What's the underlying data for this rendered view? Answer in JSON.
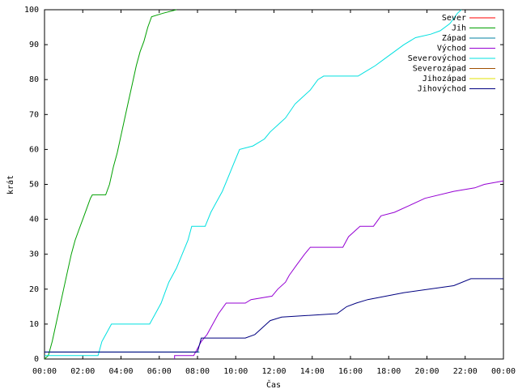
{
  "chart_data": {
    "type": "line",
    "title": "",
    "xlabel": "Čas",
    "ylabel": "krát",
    "xlim": [
      0,
      24
    ],
    "ylim": [
      0,
      100
    ],
    "x_ticks": [
      {
        "v": 0,
        "label": "00:00"
      },
      {
        "v": 2,
        "label": "02:00"
      },
      {
        "v": 4,
        "label": "04:00"
      },
      {
        "v": 6,
        "label": "06:00"
      },
      {
        "v": 8,
        "label": "08:00"
      },
      {
        "v": 10,
        "label": "10:00"
      },
      {
        "v": 12,
        "label": "12:00"
      },
      {
        "v": 14,
        "label": "14:00"
      },
      {
        "v": 16,
        "label": "16:00"
      },
      {
        "v": 18,
        "label": "18:00"
      },
      {
        "v": 20,
        "label": "20:00"
      },
      {
        "v": 22,
        "label": "22:00"
      },
      {
        "v": 24,
        "label": "00:00"
      }
    ],
    "y_ticks": [
      0,
      10,
      20,
      30,
      40,
      50,
      60,
      70,
      80,
      90,
      100
    ],
    "grid": false,
    "legend_position": "top-right",
    "series": [
      {
        "name": "Sever",
        "color": "#ff0000",
        "points": []
      },
      {
        "name": "Jih",
        "color": "#00a000",
        "points": [
          [
            0,
            0
          ],
          [
            0.2,
            1
          ],
          [
            0.4,
            5
          ],
          [
            0.6,
            10
          ],
          [
            0.8,
            15
          ],
          [
            1.0,
            20
          ],
          [
            1.2,
            25
          ],
          [
            1.4,
            30
          ],
          [
            1.6,
            34
          ],
          [
            1.8,
            37
          ],
          [
            2.0,
            40
          ],
          [
            2.2,
            43
          ],
          [
            2.4,
            46
          ],
          [
            2.5,
            47
          ],
          [
            3.2,
            47
          ],
          [
            3.4,
            50
          ],
          [
            3.6,
            55
          ],
          [
            3.8,
            59
          ],
          [
            4.0,
            64
          ],
          [
            4.2,
            69
          ],
          [
            4.4,
            74
          ],
          [
            4.6,
            79
          ],
          [
            4.8,
            84
          ],
          [
            5.0,
            88
          ],
          [
            5.2,
            91
          ],
          [
            5.4,
            95
          ],
          [
            5.6,
            98
          ],
          [
            6.2,
            99
          ],
          [
            6.9,
            100
          ]
        ]
      },
      {
        "name": "Západ",
        "color": "#0080a0",
        "points": [
          [
            0,
            2
          ],
          [
            8.1,
            2
          ]
        ]
      },
      {
        "name": "Východ",
        "color": "#9500d3",
        "points": [
          [
            6.8,
            0
          ],
          [
            6.8,
            1
          ],
          [
            7.8,
            1
          ],
          [
            8.0,
            3
          ],
          [
            8.2,
            5
          ],
          [
            8.5,
            7
          ],
          [
            8.8,
            10
          ],
          [
            9.1,
            13
          ],
          [
            9.5,
            16
          ],
          [
            10.5,
            16
          ],
          [
            10.8,
            17
          ],
          [
            11.9,
            18
          ],
          [
            12.2,
            20
          ],
          [
            12.6,
            22
          ],
          [
            12.8,
            24
          ],
          [
            13.2,
            27
          ],
          [
            13.6,
            30
          ],
          [
            13.9,
            32
          ],
          [
            15.6,
            32
          ],
          [
            15.9,
            35
          ],
          [
            16.5,
            38
          ],
          [
            17.2,
            38
          ],
          [
            17.6,
            41
          ],
          [
            18.3,
            42
          ],
          [
            19.1,
            44
          ],
          [
            19.9,
            46
          ],
          [
            21.4,
            48
          ],
          [
            22.5,
            49
          ],
          [
            23.0,
            50
          ],
          [
            24.0,
            51
          ]
        ]
      },
      {
        "name": "Severovýchod",
        "color": "#00e0e0",
        "points": [
          [
            0,
            1
          ],
          [
            2.8,
            1
          ],
          [
            3.0,
            5
          ],
          [
            3.3,
            8
          ],
          [
            3.5,
            10
          ],
          [
            5.5,
            10
          ],
          [
            5.8,
            13
          ],
          [
            6.1,
            16
          ],
          [
            6.3,
            19
          ],
          [
            6.5,
            22
          ],
          [
            6.9,
            26
          ],
          [
            7.2,
            30
          ],
          [
            7.5,
            34
          ],
          [
            7.7,
            38
          ],
          [
            8.4,
            38
          ],
          [
            8.7,
            42
          ],
          [
            9.0,
            45
          ],
          [
            9.3,
            48
          ],
          [
            9.6,
            52
          ],
          [
            9.9,
            56
          ],
          [
            10.2,
            60
          ],
          [
            10.9,
            61
          ],
          [
            11.5,
            63
          ],
          [
            11.8,
            65
          ],
          [
            12.2,
            67
          ],
          [
            12.6,
            69
          ],
          [
            13.1,
            73
          ],
          [
            13.5,
            75
          ],
          [
            13.9,
            77
          ],
          [
            14.3,
            80
          ],
          [
            14.6,
            81
          ],
          [
            16.4,
            81
          ],
          [
            16.7,
            82
          ],
          [
            17.3,
            84
          ],
          [
            17.8,
            86
          ],
          [
            18.3,
            88
          ],
          [
            18.8,
            90
          ],
          [
            19.4,
            92
          ],
          [
            20.2,
            93
          ],
          [
            20.7,
            94
          ],
          [
            21.2,
            96
          ],
          [
            21.6,
            99
          ],
          [
            21.8,
            100
          ]
        ]
      },
      {
        "name": "Severozápad",
        "color": "#a05000",
        "points": []
      },
      {
        "name": "Jihozápad",
        "color": "#e0e000",
        "points": []
      },
      {
        "name": "Jihovýchod",
        "color": "#000080",
        "points": [
          [
            0,
            2
          ],
          [
            8.0,
            2
          ],
          [
            8.2,
            6
          ],
          [
            10.5,
            6
          ],
          [
            11.0,
            7
          ],
          [
            11.4,
            9
          ],
          [
            11.8,
            11
          ],
          [
            12.4,
            12
          ],
          [
            15.3,
            13
          ],
          [
            15.8,
            15
          ],
          [
            16.3,
            16
          ],
          [
            16.9,
            17
          ],
          [
            18.8,
            19
          ],
          [
            21.4,
            21
          ],
          [
            22.3,
            23
          ],
          [
            24.0,
            23
          ]
        ]
      }
    ]
  }
}
